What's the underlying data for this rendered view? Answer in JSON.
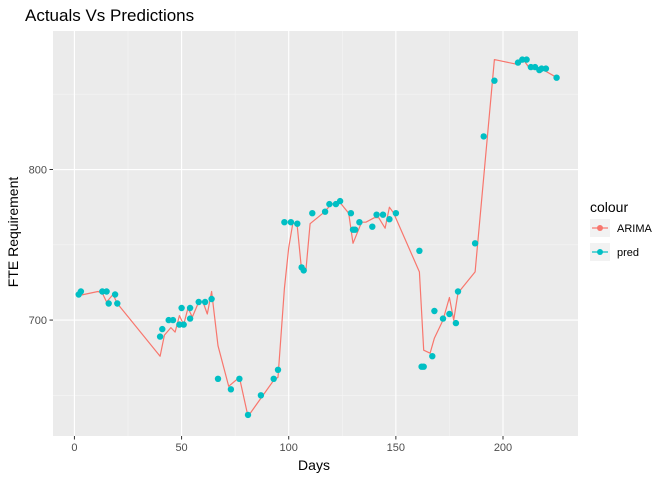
{
  "chart_data": {
    "type": "line",
    "title": "Actuals Vs Predictions",
    "xlabel": "Days",
    "ylabel": "FTE Requirement",
    "xlim": [
      -10,
      235
    ],
    "ylim": [
      623,
      892
    ],
    "x_ticks": [
      0,
      50,
      100,
      150,
      200
    ],
    "y_ticks": [
      700,
      800
    ],
    "grid": true,
    "legend_title": "colour",
    "legend_position": "right",
    "series": [
      {
        "name": "ARIMA",
        "style": "line",
        "color": "#F8766D",
        "points": [
          [
            1,
            716
          ],
          [
            11,
            719
          ],
          [
            13,
            718
          ],
          [
            15,
            712
          ],
          [
            18,
            717
          ],
          [
            20,
            711
          ],
          [
            40,
            676
          ],
          [
            42,
            690
          ],
          [
            45,
            695
          ],
          [
            47,
            692
          ],
          [
            49,
            703
          ],
          [
            51,
            697
          ],
          [
            53,
            708
          ],
          [
            55,
            702
          ],
          [
            58,
            712
          ],
          [
            60,
            712
          ],
          [
            62,
            704
          ],
          [
            64,
            719
          ],
          [
            67,
            683
          ],
          [
            72,
            656
          ],
          [
            77,
            662
          ],
          [
            81,
            636
          ],
          [
            93,
            660
          ],
          [
            95,
            662
          ],
          [
            98,
            721
          ],
          [
            100,
            748
          ],
          [
            102,
            765
          ],
          [
            104,
            762
          ],
          [
            106,
            733
          ],
          [
            108,
            733
          ],
          [
            110,
            764
          ],
          [
            116,
            771
          ],
          [
            120,
            777
          ],
          [
            124,
            778
          ],
          [
            128,
            771
          ],
          [
            130,
            751
          ],
          [
            134,
            765
          ],
          [
            136,
            765
          ],
          [
            140,
            768
          ],
          [
            142,
            768
          ],
          [
            145,
            761
          ],
          [
            147,
            775
          ],
          [
            149,
            771
          ],
          [
            161,
            732
          ],
          [
            163,
            680
          ],
          [
            166,
            678
          ],
          [
            168,
            688
          ],
          [
            172,
            700
          ],
          [
            175,
            715
          ],
          [
            177,
            700
          ],
          [
            179,
            718
          ],
          [
            187,
            732
          ],
          [
            196,
            873
          ],
          [
            206,
            870
          ],
          [
            210,
            872
          ],
          [
            212,
            868
          ],
          [
            214,
            869
          ],
          [
            217,
            867
          ],
          [
            219,
            866
          ],
          [
            224,
            862
          ]
        ]
      },
      {
        "name": "pred",
        "style": "points",
        "color": "#00BFC4",
        "points": [
          [
            2,
            717
          ],
          [
            3,
            719
          ],
          [
            13,
            719
          ],
          [
            15,
            719
          ],
          [
            16,
            711
          ],
          [
            19,
            717
          ],
          [
            20,
            711
          ],
          [
            40,
            689
          ],
          [
            41,
            694
          ],
          [
            44,
            700
          ],
          [
            46,
            700
          ],
          [
            49,
            697
          ],
          [
            50,
            708
          ],
          [
            51,
            697
          ],
          [
            54,
            708
          ],
          [
            54,
            701
          ],
          [
            58,
            712
          ],
          [
            61,
            712
          ],
          [
            64,
            714
          ],
          [
            67,
            661
          ],
          [
            73,
            654
          ],
          [
            77,
            661
          ],
          [
            81,
            637
          ],
          [
            87,
            650
          ],
          [
            93,
            661
          ],
          [
            95,
            667
          ],
          [
            98,
            765
          ],
          [
            101,
            765
          ],
          [
            104,
            764
          ],
          [
            106,
            735
          ],
          [
            107,
            733
          ],
          [
            111,
            771
          ],
          [
            117,
            772
          ],
          [
            119,
            777
          ],
          [
            122,
            777
          ],
          [
            124,
            779
          ],
          [
            129,
            771
          ],
          [
            130,
            760
          ],
          [
            131,
            760
          ],
          [
            133,
            765
          ],
          [
            139,
            762
          ],
          [
            141,
            770
          ],
          [
            144,
            770
          ],
          [
            147,
            767
          ],
          [
            150,
            771
          ],
          [
            161,
            746
          ],
          [
            162,
            669
          ],
          [
            163,
            669
          ],
          [
            167,
            676
          ],
          [
            168,
            706
          ],
          [
            172,
            701
          ],
          [
            175,
            704
          ],
          [
            178,
            698
          ],
          [
            179,
            719
          ],
          [
            187,
            751
          ],
          [
            191,
            822
          ],
          [
            196,
            859
          ],
          [
            207,
            871
          ],
          [
            209,
            873
          ],
          [
            211,
            873
          ],
          [
            213,
            868
          ],
          [
            215,
            868
          ],
          [
            217,
            866
          ],
          [
            218,
            867
          ],
          [
            220,
            867
          ],
          [
            225,
            861
          ]
        ]
      }
    ]
  }
}
